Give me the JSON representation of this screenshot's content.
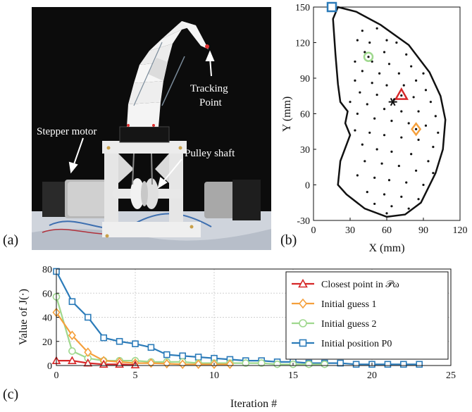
{
  "panels": {
    "a": "(a)",
    "b": "(b)",
    "c": "(c)"
  },
  "photo": {
    "labels": {
      "tracking_1": "Tracking",
      "tracking_2": "Point",
      "stepper": "Stepper motor",
      "pulley": "Pulley shaft"
    }
  },
  "workspace": {
    "xlabel": "X (mm)",
    "ylabel": "Y (mm)",
    "xlim": [
      0,
      120
    ],
    "ylim": [
      -30,
      150
    ],
    "xticks": [
      0,
      30,
      60,
      90,
      120
    ],
    "yticks": [
      -30,
      0,
      30,
      60,
      90,
      120,
      150
    ],
    "boundary": [
      [
        20,
        150
      ],
      [
        35,
        146
      ],
      [
        55,
        135
      ],
      [
        78,
        118
      ],
      [
        95,
        95
      ],
      [
        104,
        75
      ],
      [
        108,
        55
      ],
      [
        106,
        30
      ],
      [
        100,
        10
      ],
      [
        88,
        -15
      ],
      [
        75,
        -25
      ],
      [
        60,
        -27
      ],
      [
        42,
        -20
      ],
      [
        27,
        -8
      ],
      [
        20,
        0
      ],
      [
        22,
        20
      ],
      [
        30,
        42
      ],
      [
        26,
        52
      ],
      [
        28,
        62
      ],
      [
        22,
        70
      ],
      [
        20,
        85
      ],
      [
        18,
        110
      ],
      [
        16,
        140
      ],
      [
        20,
        150
      ]
    ],
    "points": [
      [
        40,
        130
      ],
      [
        52,
        132
      ],
      [
        36,
        122
      ],
      [
        46,
        120
      ],
      [
        60,
        122
      ],
      [
        68,
        120
      ],
      [
        42,
        112
      ],
      [
        58,
        112
      ],
      [
        76,
        110
      ],
      [
        34,
        104
      ],
      [
        48,
        104
      ],
      [
        62,
        102
      ],
      [
        80,
        100
      ],
      [
        90,
        94
      ],
      [
        40,
        96
      ],
      [
        54,
        94
      ],
      [
        70,
        94
      ],
      [
        84,
        88
      ],
      [
        34,
        88
      ],
      [
        48,
        86
      ],
      [
        60,
        84
      ],
      [
        74,
        84
      ],
      [
        92,
        80
      ],
      [
        38,
        78
      ],
      [
        52,
        76
      ],
      [
        66,
        72
      ],
      [
        82,
        74
      ],
      [
        96,
        70
      ],
      [
        30,
        70
      ],
      [
        44,
        68
      ],
      [
        58,
        64
      ],
      [
        72,
        62
      ],
      [
        86,
        62
      ],
      [
        100,
        58
      ],
      [
        36,
        60
      ],
      [
        50,
        56
      ],
      [
        64,
        54
      ],
      [
        78,
        52
      ],
      [
        92,
        50
      ],
      [
        102,
        44
      ],
      [
        34,
        46
      ],
      [
        46,
        44
      ],
      [
        58,
        42
      ],
      [
        72,
        40
      ],
      [
        86,
        38
      ],
      [
        98,
        32
      ],
      [
        40,
        34
      ],
      [
        52,
        30
      ],
      [
        64,
        28
      ],
      [
        80,
        26
      ],
      [
        94,
        20
      ],
      [
        42,
        20
      ],
      [
        56,
        18
      ],
      [
        70,
        16
      ],
      [
        84,
        12
      ],
      [
        98,
        10
      ],
      [
        36,
        8
      ],
      [
        50,
        6
      ],
      [
        62,
        4
      ],
      [
        76,
        2
      ],
      [
        90,
        0
      ],
      [
        44,
        -6
      ],
      [
        58,
        -8
      ],
      [
        72,
        -10
      ],
      [
        86,
        -12
      ],
      [
        50,
        -16
      ],
      [
        64,
        -18
      ],
      [
        78,
        -20
      ],
      [
        60,
        -24
      ]
    ],
    "markers": {
      "initial_position": [
        15,
        150
      ],
      "initial_guess_2": [
        45,
        108
      ],
      "closest_point": [
        72,
        76
      ],
      "initial_guess_1": [
        84,
        47
      ],
      "target_star": [
        65,
        70
      ]
    }
  },
  "chart_data": {
    "type": "line",
    "xlabel": "Iteration #",
    "ylabel": "Value of J(·)",
    "xlim": [
      0,
      25
    ],
    "ylim": [
      0,
      80
    ],
    "xticks": [
      0,
      5,
      10,
      15,
      20,
      25
    ],
    "yticks": [
      0,
      20,
      40,
      60,
      80
    ],
    "grid": true,
    "legend_position": "top-right",
    "series": [
      {
        "name": "Closest point in 𝒫ω",
        "color": "#d62728",
        "marker": "triangle",
        "x": [
          0,
          1,
          2,
          3,
          4,
          5
        ],
        "y": [
          4,
          4,
          2,
          1,
          1,
          0.5
        ]
      },
      {
        "name": "Initial guess 1",
        "color": "#f5a03c",
        "marker": "diamond",
        "x": [
          0,
          1,
          2,
          3,
          4,
          5,
          6,
          7,
          8,
          9,
          10,
          11
        ],
        "y": [
          44,
          25,
          11,
          4,
          3,
          2,
          2,
          1.5,
          1,
          1,
          1,
          1
        ]
      },
      {
        "name": "Initial guess 2",
        "color": "#9fd88e",
        "marker": "circle",
        "x": [
          0,
          1,
          2,
          3,
          4,
          5,
          6,
          7,
          8,
          9,
          10,
          11,
          12,
          13,
          14,
          15,
          16,
          17
        ],
        "y": [
          57,
          12,
          6,
          4,
          4,
          4,
          3,
          3,
          3,
          2,
          2,
          2,
          2,
          2,
          1,
          1,
          1,
          1
        ]
      },
      {
        "name": "Initial position P0",
        "color": "#2b7bb9",
        "marker": "square",
        "x": [
          0,
          1,
          2,
          3,
          4,
          5,
          6,
          7,
          8,
          9,
          10,
          11,
          12,
          13,
          14,
          15,
          16,
          17,
          18,
          19,
          20,
          21,
          22,
          23
        ],
        "y": [
          78,
          53,
          40,
          23,
          20,
          18,
          15,
          9,
          8,
          7,
          6,
          5,
          4,
          4,
          3,
          3,
          2,
          2,
          2,
          1,
          1,
          1,
          1,
          1
        ]
      }
    ]
  }
}
